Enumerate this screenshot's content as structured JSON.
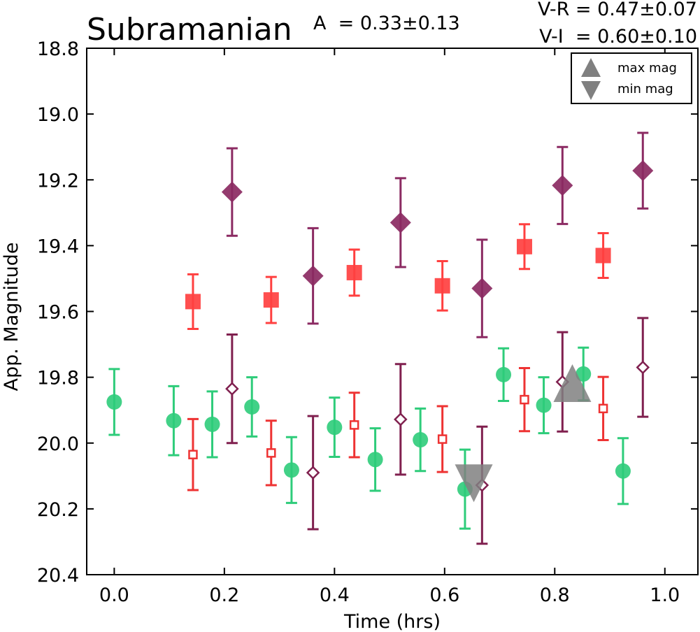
{
  "chart_data": {
    "type": "scatter",
    "title": "Subramanian",
    "annotations": {
      "amplitude": "A  = 0.33±0.13",
      "v_r": "V-R = 0.47±0.07",
      "v_i": "V-I  = 0.60±0.10"
    },
    "xlabel": "Time (hrs)",
    "ylabel": "App. Magnitude",
    "xlim": [
      -0.05,
      1.06
    ],
    "ylim": [
      20.4,
      18.8
    ],
    "y_inverted": true,
    "xticks": [
      "0.0",
      "0.2",
      "0.4",
      "0.6",
      "0.8",
      "1.0"
    ],
    "yticks": [
      "18.8",
      "19.0",
      "19.2",
      "19.4",
      "19.6",
      "19.8",
      "20.0",
      "20.2",
      "20.4"
    ],
    "grid": false,
    "legend_position": "top-right",
    "legend": [
      {
        "label": "max mag",
        "marker": "triangle-up",
        "color": "#808080"
      },
      {
        "label": "min mag",
        "marker": "triangle-down",
        "color": "#808080"
      }
    ],
    "series": [
      {
        "marker": "circle",
        "filled": true,
        "color": "#2ecc7a",
        "points": [
          {
            "x": 0.0,
            "y": 19.875,
            "err": 0.1
          },
          {
            "x": 0.108,
            "y": 19.932,
            "err": 0.105
          },
          {
            "x": 0.178,
            "y": 19.943,
            "err": 0.1
          },
          {
            "x": 0.25,
            "y": 19.89,
            "err": 0.09
          },
          {
            "x": 0.322,
            "y": 20.082,
            "err": 0.1
          },
          {
            "x": 0.4,
            "y": 19.952,
            "err": 0.09
          },
          {
            "x": 0.474,
            "y": 20.05,
            "err": 0.095
          },
          {
            "x": 0.556,
            "y": 19.99,
            "err": 0.095
          },
          {
            "x": 0.637,
            "y": 20.14,
            "err": 0.12
          },
          {
            "x": 0.707,
            "y": 19.792,
            "err": 0.08
          },
          {
            "x": 0.78,
            "y": 19.885,
            "err": 0.085
          },
          {
            "x": 0.852,
            "y": 19.79,
            "err": 0.08
          },
          {
            "x": 0.924,
            "y": 20.085,
            "err": 0.1
          }
        ]
      },
      {
        "marker": "square",
        "filled": true,
        "color": "#ff4040",
        "points": [
          {
            "x": 0.143,
            "y": 19.57,
            "err": 0.083
          },
          {
            "x": 0.285,
            "y": 19.565,
            "err": 0.07
          },
          {
            "x": 0.436,
            "y": 19.482,
            "err": 0.07
          },
          {
            "x": 0.596,
            "y": 19.522,
            "err": 0.075
          },
          {
            "x": 0.745,
            "y": 19.403,
            "err": 0.068
          },
          {
            "x": 0.888,
            "y": 19.43,
            "err": 0.068
          }
        ]
      },
      {
        "marker": "square",
        "filled": false,
        "color": "#ee3333",
        "points": [
          {
            "x": 0.143,
            "y": 20.035,
            "err": 0.108
          },
          {
            "x": 0.285,
            "y": 20.03,
            "err": 0.098
          },
          {
            "x": 0.436,
            "y": 19.945,
            "err": 0.098
          },
          {
            "x": 0.596,
            "y": 19.988,
            "err": 0.1
          },
          {
            "x": 0.745,
            "y": 19.868,
            "err": 0.096
          },
          {
            "x": 0.888,
            "y": 19.895,
            "err": 0.096
          }
        ]
      },
      {
        "marker": "diamond",
        "filled": true,
        "color": "#8b2a62",
        "points": [
          {
            "x": 0.214,
            "y": 19.237,
            "err": 0.133
          },
          {
            "x": 0.361,
            "y": 19.492,
            "err": 0.145
          },
          {
            "x": 0.52,
            "y": 19.33,
            "err": 0.135
          },
          {
            "x": 0.668,
            "y": 19.53,
            "err": 0.148
          },
          {
            "x": 0.814,
            "y": 19.217,
            "err": 0.117
          },
          {
            "x": 0.96,
            "y": 19.172,
            "err": 0.115
          }
        ]
      },
      {
        "marker": "diamond",
        "filled": false,
        "color": "#80204f",
        "points": [
          {
            "x": 0.214,
            "y": 19.835,
            "err": 0.165
          },
          {
            "x": 0.361,
            "y": 20.09,
            "err": 0.172
          },
          {
            "x": 0.52,
            "y": 19.928,
            "err": 0.168
          },
          {
            "x": 0.668,
            "y": 20.128,
            "err": 0.178
          },
          {
            "x": 0.814,
            "y": 19.814,
            "err": 0.151
          },
          {
            "x": 0.96,
            "y": 19.77,
            "err": 0.15
          }
        ]
      }
    ],
    "extrema": [
      {
        "type": "max mag",
        "marker": "triangle-up",
        "x": 0.832,
        "y": 19.82
      },
      {
        "type": "min mag",
        "marker": "triangle-down",
        "x": 0.653,
        "y": 20.12
      }
    ]
  }
}
